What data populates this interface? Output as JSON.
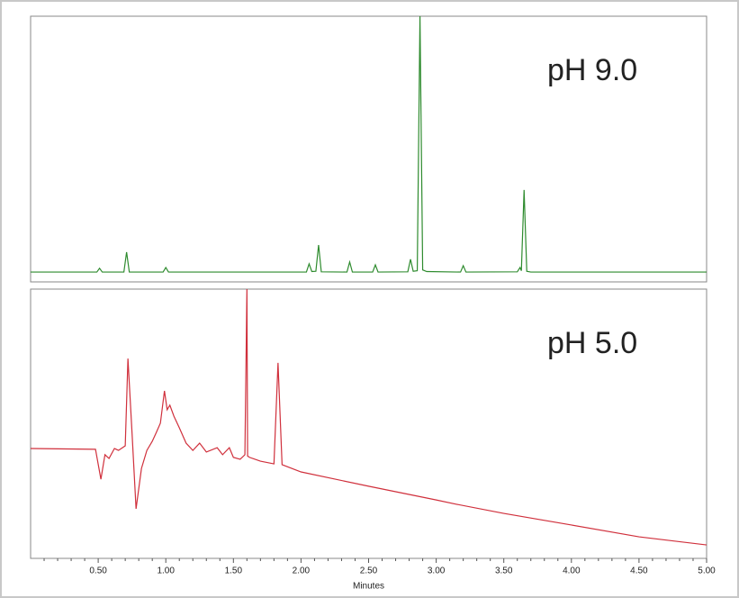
{
  "chart_data": [
    {
      "type": "line",
      "label": "pH 9.0",
      "color": "#2e8b2e",
      "ylim": [
        0,
        100
      ],
      "xlim": [
        0,
        5
      ],
      "x": [
        0,
        0.49,
        0.51,
        0.53,
        0.69,
        0.71,
        0.73,
        0.98,
        1.0,
        1.02,
        2.04,
        2.06,
        2.08,
        2.11,
        2.13,
        2.15,
        2.34,
        2.36,
        2.38,
        2.53,
        2.55,
        2.57,
        2.79,
        2.81,
        2.83,
        2.86,
        2.88,
        2.9,
        2.93,
        3.18,
        3.2,
        3.22,
        3.6,
        3.62,
        3.63,
        3.65,
        3.67,
        3.7,
        5.0
      ],
      "values": [
        3.7,
        3.7,
        5.1,
        3.7,
        3.7,
        11.2,
        3.7,
        3.7,
        5.4,
        3.7,
        3.7,
        6.8,
        3.9,
        4.0,
        13.9,
        3.8,
        3.7,
        7.5,
        3.7,
        3.7,
        6.4,
        3.7,
        3.8,
        8.5,
        4.0,
        4.2,
        100,
        4.5,
        3.9,
        3.7,
        6.1,
        3.7,
        3.8,
        5.4,
        4.2,
        34.6,
        4.0,
        3.7,
        3.7
      ]
    },
    {
      "type": "line",
      "label": "pH 5.0",
      "color": "#d0303c",
      "ylim": [
        0,
        100
      ],
      "xlim": [
        0,
        5
      ],
      "xlabel": "Minutes",
      "xticks": [
        {
          "value": 0.5,
          "label": "0.50"
        },
        {
          "value": 1.0,
          "label": "1.00"
        },
        {
          "value": 1.5,
          "label": "1.50"
        },
        {
          "value": 2.0,
          "label": "2.00"
        },
        {
          "value": 2.5,
          "label": "2.50"
        },
        {
          "value": 3.0,
          "label": "3.00"
        },
        {
          "value": 3.5,
          "label": "3.50"
        },
        {
          "value": 4.0,
          "label": "4.00"
        },
        {
          "value": 4.5,
          "label": "4.50"
        },
        {
          "value": 5.0,
          "label": "5.00"
        }
      ],
      "xminorticks": [
        0.1,
        0.2,
        0.3,
        0.4,
        0.6,
        0.7,
        0.8,
        0.9,
        1.1,
        1.2,
        1.3,
        1.4,
        1.6,
        1.7,
        1.8,
        1.9,
        2.1,
        2.2,
        2.3,
        2.4,
        2.6,
        2.7,
        2.8,
        2.9,
        3.1,
        3.2,
        3.3,
        3.4,
        3.6,
        3.7,
        3.8,
        3.9,
        4.1,
        4.2,
        4.3,
        4.4,
        4.6,
        4.7,
        4.8,
        4.9
      ],
      "x": [
        0,
        0.48,
        0.52,
        0.55,
        0.58,
        0.62,
        0.65,
        0.7,
        0.72,
        0.75,
        0.78,
        0.82,
        0.86,
        0.9,
        0.93,
        0.96,
        0.99,
        1.01,
        1.03,
        1.06,
        1.1,
        1.15,
        1.2,
        1.25,
        1.3,
        1.38,
        1.42,
        1.47,
        1.5,
        1.55,
        1.585,
        1.6,
        1.605,
        1.62,
        1.7,
        1.8,
        1.83,
        1.86,
        2.0,
        2.5,
        3.0,
        3.15,
        3.5,
        4.0,
        4.5,
        5.0
      ],
      "values": [
        40.8,
        40.5,
        29.4,
        38.5,
        37.1,
        40.8,
        40.1,
        41.8,
        74.2,
        46.8,
        18.4,
        33.4,
        40.1,
        43.5,
        46.8,
        50.2,
        62.2,
        55.2,
        56.9,
        52.8,
        48.5,
        42.8,
        40.1,
        42.8,
        39.5,
        41.1,
        38.5,
        41.1,
        37.5,
        36.8,
        38.5,
        100,
        38.0,
        37.5,
        36.1,
        35.1,
        72.6,
        34.8,
        32.1,
        26.8,
        21.7,
        20.1,
        16.7,
        12.4,
        8.0,
        5.0
      ]
    }
  ]
}
